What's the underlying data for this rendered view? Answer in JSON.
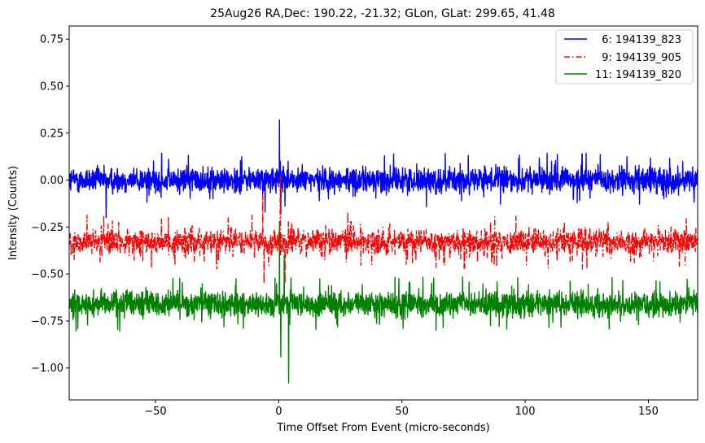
{
  "chart_data": {
    "type": "line",
    "title": "25Aug26 RA,Dec:  190.22, -21.32; GLon, GLat:  299.65,  41.48",
    "xlabel": "Time Offset From Event (micro-seconds)",
    "ylabel": "Intensity (Counts)",
    "xlim": [
      -85,
      170
    ],
    "ylim": [
      -1.17,
      0.82
    ],
    "xticks": [
      -50,
      0,
      50,
      100,
      150
    ],
    "xtick_labels": [
      "−50",
      "0",
      "50",
      "100",
      "150"
    ],
    "yticks": [
      0.75,
      0.5,
      0.25,
      0.0,
      -0.25,
      -0.5,
      -0.75,
      -1.0
    ],
    "ytick_labels": [
      "0.75",
      "0.50",
      "0.25",
      "0.00",
      "−0.25",
      "−0.50",
      "−0.75",
      "−1.00"
    ],
    "legend_position": "top-right",
    "series": [
      {
        "name": "  6: 194139_823",
        "color": "#0000ff",
        "style": "solid",
        "baseline": 0.0,
        "noise_amplitude": 0.06,
        "features": [
          {
            "x": 0.3,
            "y": 0.32
          },
          {
            "x": 0.6,
            "y": 0.1
          },
          {
            "x": -5.5,
            "y": -0.17
          },
          {
            "x": -70,
            "y": -0.2
          },
          {
            "x": 0.8,
            "y": -0.18
          }
        ]
      },
      {
        "name": "  9: 194139_905",
        "color": "#ff0000",
        "style": "dashdot",
        "baseline": -0.33,
        "noise_amplitude": 0.06,
        "features": [
          {
            "x": 0.6,
            "y": 0.02
          },
          {
            "x": -6,
            "y": -0.55
          },
          {
            "x": -6.5,
            "y": -0.08
          },
          {
            "x": 2.5,
            "y": -0.55
          },
          {
            "x": 28,
            "y": -0.17
          }
        ]
      },
      {
        "name": "11: 194139_820",
        "color": "#008000",
        "style": "solid",
        "baseline": -0.66,
        "noise_amplitude": 0.06,
        "features": [
          {
            "x": 0.3,
            "y": -0.22
          },
          {
            "x": 0.8,
            "y": -0.94
          },
          {
            "x": 4,
            "y": -1.08
          },
          {
            "x": 2.2,
            "y": -0.4
          },
          {
            "x": 5,
            "y": -0.52
          },
          {
            "x": 97,
            "y": -0.52
          }
        ]
      }
    ]
  }
}
